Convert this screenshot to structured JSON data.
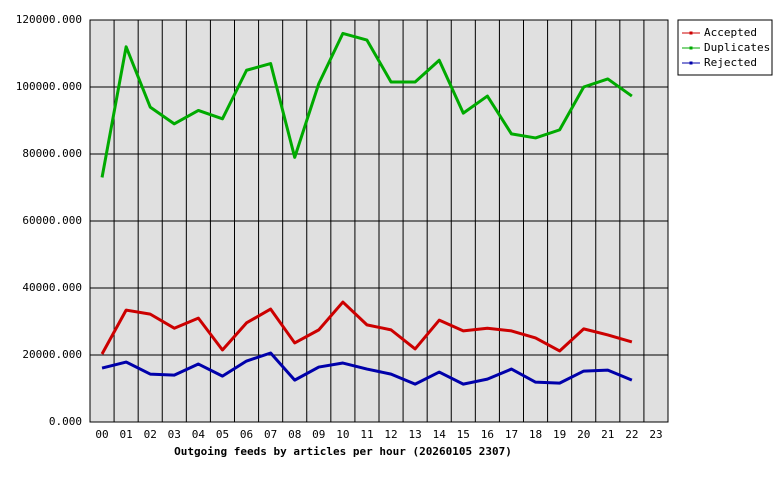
{
  "chart_data": {
    "type": "line",
    "xlabel": "Outgoing feeds by articles per hour (20260105 2307)",
    "categories": [
      "00",
      "01",
      "02",
      "03",
      "04",
      "05",
      "06",
      "07",
      "08",
      "09",
      "10",
      "11",
      "12",
      "13",
      "14",
      "15",
      "16",
      "17",
      "18",
      "19",
      "20",
      "21",
      "22",
      "23"
    ],
    "ylim": [
      0,
      120000
    ],
    "yticks": [
      {
        "value": 0,
        "label": "0.000"
      },
      {
        "value": 20000,
        "label": "20000.000"
      },
      {
        "value": 40000,
        "label": "40000.000"
      },
      {
        "value": 60000,
        "label": "60000.000"
      },
      {
        "value": 80000,
        "label": "80000.000"
      },
      {
        "value": 100000,
        "label": "100000.000"
      },
      {
        "value": 120000,
        "label": "120000.000"
      }
    ],
    "grid": true,
    "legend": "outside-right",
    "series": [
      {
        "name": "Accepted",
        "color": "#cc0000",
        "values": [
          20300,
          33400,
          32200,
          28000,
          31000,
          21500,
          29600,
          33700,
          23600,
          27500,
          35800,
          29000,
          27500,
          21800,
          30400,
          27200,
          28000,
          27200,
          25100,
          21200,
          27800,
          26000,
          23900,
          null
        ]
      },
      {
        "name": "Duplicates",
        "color": "#00aa00",
        "values": [
          73000,
          112000,
          94000,
          89000,
          93000,
          90500,
          105000,
          107000,
          79000,
          101000,
          116000,
          114000,
          101500,
          101500,
          108000,
          92200,
          97300,
          86000,
          84800,
          87200,
          100000,
          102400,
          97300,
          null
        ]
      },
      {
        "name": "Rejected",
        "color": "#0000aa",
        "values": [
          16100,
          17900,
          14300,
          14000,
          17300,
          13700,
          18200,
          20600,
          12500,
          16400,
          17600,
          15800,
          14300,
          11300,
          14900,
          11300,
          12800,
          15800,
          11900,
          11600,
          15200,
          15500,
          12500,
          null
        ]
      }
    ]
  }
}
